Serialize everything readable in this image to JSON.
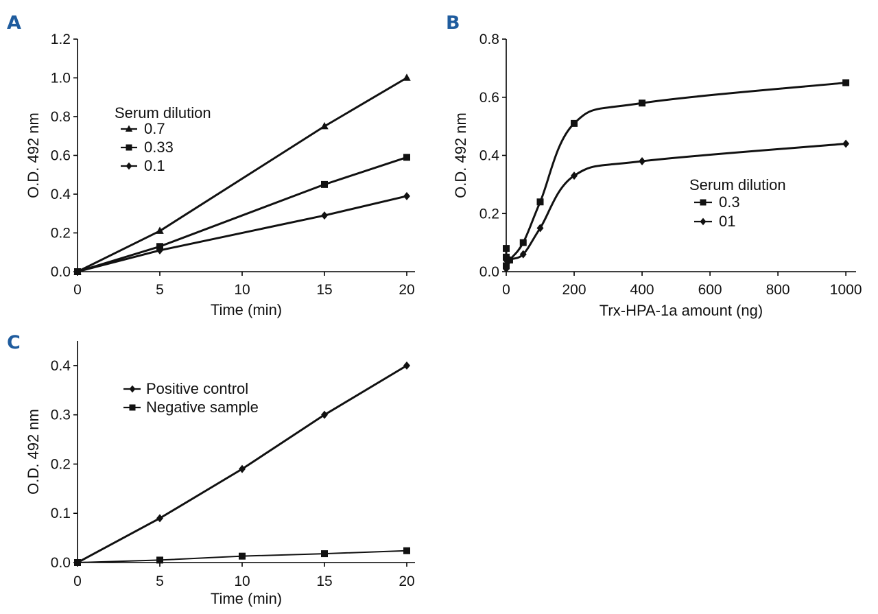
{
  "chart_data": [
    {
      "panel": "A",
      "type": "line",
      "title": "",
      "xlabel": "Time (min)",
      "ylabel": "O.D. 492 nm",
      "xlim": [
        0,
        20.5
      ],
      "ylim": [
        0,
        1.2
      ],
      "xticks": [
        "0",
        "5",
        "10",
        "15",
        "20"
      ],
      "yticks": [
        "0.0",
        "0.2",
        "0.4",
        "0.6",
        "0.8",
        "1.0",
        "1.2"
      ],
      "legend_title": "Serum dilution",
      "legend_position": "upper-left",
      "series": [
        {
          "name": "0.7",
          "marker": "triangle",
          "x": [
            0,
            5,
            15,
            20
          ],
          "values": [
            0.0,
            0.21,
            0.75,
            1.0
          ]
        },
        {
          "name": "0.33",
          "marker": "square",
          "x": [
            0,
            5,
            15,
            20
          ],
          "values": [
            0.0,
            0.13,
            0.45,
            0.59
          ]
        },
        {
          "name": "0.1",
          "marker": "diamond",
          "x": [
            0,
            5,
            15,
            20
          ],
          "values": [
            0.0,
            0.11,
            0.29,
            0.39
          ]
        }
      ]
    },
    {
      "panel": "B",
      "type": "line",
      "title": "",
      "xlabel": "Trx-HPA-1a amount (ng)",
      "ylabel": "O.D. 492 nm",
      "xlim": [
        0,
        1030
      ],
      "ylim": [
        0,
        0.8
      ],
      "xticks": [
        "0",
        "200",
        "400",
        "600",
        "800",
        "1000"
      ],
      "yticks": [
        "0.0",
        "0.2",
        "0.4",
        "0.6",
        "0.8"
      ],
      "legend_title": "Serum dilution",
      "legend_position": "center-right",
      "series": [
        {
          "name": "0.3",
          "marker": "square",
          "x": [
            0,
            0,
            0,
            10,
            50,
            100,
            200,
            400,
            1000
          ],
          "values": [
            0.02,
            0.05,
            0.08,
            0.04,
            0.1,
            0.24,
            0.51,
            0.58,
            0.65
          ]
        },
        {
          "name": "01",
          "marker": "diamond",
          "x": [
            0,
            0,
            10,
            50,
            100,
            200,
            400,
            1000
          ],
          "values": [
            0.01,
            0.04,
            0.04,
            0.06,
            0.15,
            0.33,
            0.38,
            0.44
          ]
        }
      ]
    },
    {
      "panel": "C",
      "type": "line",
      "title": "",
      "xlabel": "Time (min)",
      "ylabel": "O.D. 492 nm",
      "xlim": [
        0,
        20.5
      ],
      "ylim": [
        0,
        0.45
      ],
      "xticks": [
        "0",
        "5",
        "10",
        "15",
        "20"
      ],
      "yticks": [
        "0.0",
        "0.1",
        "0.2",
        "0.3",
        "0.4"
      ],
      "legend_title": "",
      "legend_position": "upper-left",
      "series": [
        {
          "name": "Positive control",
          "marker": "diamond",
          "x": [
            0,
            5,
            10,
            15,
            20
          ],
          "values": [
            0.0,
            0.09,
            0.19,
            0.3,
            0.4
          ]
        },
        {
          "name": "Negative sample",
          "marker": "square",
          "x": [
            0,
            5,
            10,
            15,
            20
          ],
          "values": [
            0.0,
            0.005,
            0.013,
            0.018,
            0.024
          ]
        }
      ]
    }
  ]
}
